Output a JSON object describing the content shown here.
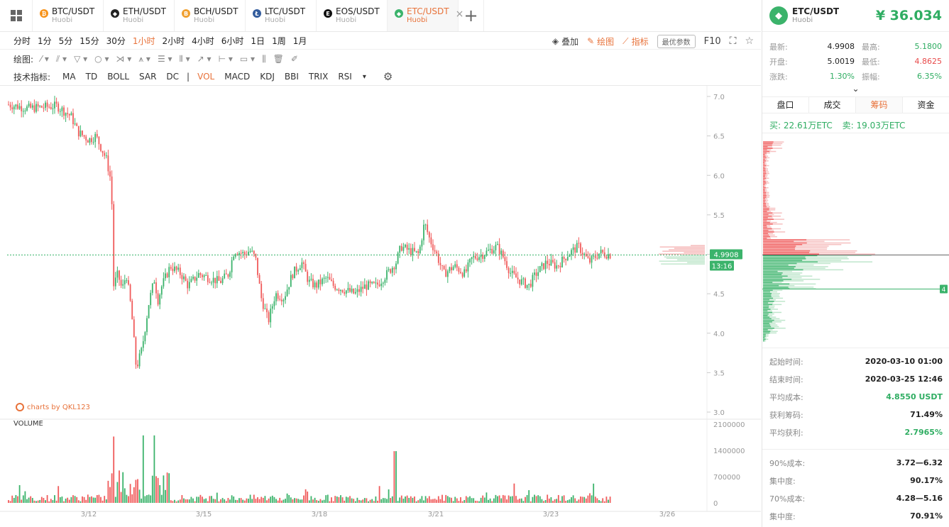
{
  "tabs": [
    {
      "pair": "BTC/USDT",
      "exchange": "Huobi",
      "color": "#f7931a",
      "glyph": "₿",
      "icon": "btc-icon"
    },
    {
      "pair": "ETH/USDT",
      "exchange": "Huobi",
      "color": "#222222",
      "glyph": "◆",
      "icon": "eth-icon"
    },
    {
      "pair": "BCH/USDT",
      "exchange": "Huobi",
      "color": "#f0a030",
      "glyph": "B",
      "icon": "bch-icon"
    },
    {
      "pair": "LTC/USDT",
      "exchange": "Huobi",
      "color": "#345d9d",
      "glyph": "Ł",
      "icon": "ltc-icon"
    },
    {
      "pair": "EOS/USDT",
      "exchange": "Huobi",
      "color": "#111111",
      "glyph": "E",
      "icon": "eos-icon"
    },
    {
      "pair": "ETC/USDT",
      "exchange": "Huobi",
      "color": "#3bb36b",
      "glyph": "◆",
      "icon": "etc-icon",
      "active": true
    }
  ],
  "toolbar": {
    "timeframes": [
      "分时",
      "1分",
      "5分",
      "15分",
      "30分",
      "1小时",
      "2小时",
      "4小时",
      "6小时",
      "1日",
      "1周",
      "1月"
    ],
    "active_timeframe": "1小时",
    "overlay_label": "叠加",
    "draw_btn_label": "绘图",
    "indicator_btn_label": "指标",
    "params_label": "最优参数",
    "f10_label": "F10",
    "draw_label": "绘图:",
    "indicators_label": "技术指标:",
    "indicators": [
      "MA",
      "TD",
      "BOLL",
      "SAR",
      "DC",
      "|",
      "VOL",
      "MACD",
      "KDJ",
      "BBI",
      "TRIX",
      "RSI"
    ],
    "active_indicator": "VOL"
  },
  "chart_data": {
    "type": "candlestick",
    "price_axis": [
      "7.0",
      "6.5",
      "6.0",
      "5.5",
      "5.0",
      "4.5",
      "4.0",
      "3.5",
      "3.0"
    ],
    "ylim": [
      3.0,
      7.0
    ],
    "volume_axis": [
      "2100000",
      "1400000",
      "700000",
      "0"
    ],
    "volume_ylim": [
      0,
      2100000
    ],
    "x_labels": [
      "3/12",
      "3/15",
      "3/18",
      "3/21",
      "3/23",
      "3/26"
    ],
    "last_price_tag": "4.9908",
    "countdown_tag": "13:16",
    "volume_title": "VOLUME",
    "watermark": "charts by QKL123",
    "bull_color": "#3bb36b",
    "bear_color": "#f05b5b"
  },
  "panel": {
    "pair": "ETC/USDT",
    "exchange": "Huobi",
    "price": "¥ 36.034",
    "stats": [
      {
        "k1": "最新:",
        "v1": "4.9908",
        "k2": "最高:",
        "v2": "5.1800",
        "c2": "green"
      },
      {
        "k1": "开盘:",
        "v1": "5.0019",
        "k2": "最低:",
        "v2": "4.8625",
        "c2": "red"
      },
      {
        "k1": "涨跌:",
        "v1": "1.30%",
        "k2": "振幅:",
        "v2": "6.35%",
        "c1": "green",
        "c2": "green"
      }
    ],
    "tabs": [
      "盘口",
      "成交",
      "筹码",
      "资金"
    ],
    "active_tab": "筹码",
    "buy": "买: 22.61万ETC",
    "sell": "卖: 19.03万ETC",
    "dist_marker": "4",
    "info1": [
      {
        "k": "起始时间:",
        "v": "2020-03-10 01:00"
      },
      {
        "k": "结束时间:",
        "v": "2020-03-25 12:46"
      },
      {
        "k": "平均成本:",
        "v": "4.8550 USDT",
        "c": "green"
      },
      {
        "k": "获利筹码:",
        "v": "71.49%"
      },
      {
        "k": "平均获利:",
        "v": "2.7965%",
        "c": "green"
      }
    ],
    "info2": [
      {
        "k": "90%成本:",
        "v": "3.72—6.32"
      },
      {
        "k": "集中度:",
        "v": "90.17%"
      },
      {
        "k": "70%成本:",
        "v": "4.28—5.16"
      },
      {
        "k": "集中度:",
        "v": "70.91%"
      }
    ]
  }
}
